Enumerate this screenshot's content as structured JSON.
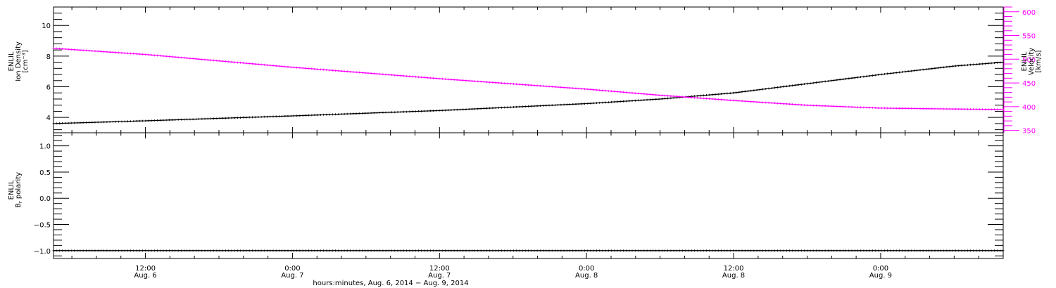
{
  "chart_data": [
    {
      "type": "line",
      "panel": "top",
      "ylabel_left": [
        "ENLIL",
        "Ion Density",
        "[cm⁻³]"
      ],
      "ylabel_right": [
        "ENLIL",
        "Velocity",
        "[km/s]"
      ],
      "ylim_left": [
        3.0,
        11.2
      ],
      "ylim_right": [
        345,
        610
      ],
      "yticks_left": [
        4,
        6,
        8,
        10
      ],
      "yticks_right": [
        350,
        400,
        450,
        500,
        550,
        600
      ],
      "series": [
        {
          "axis": "left",
          "color": "#000000",
          "x": [
            "2014-08-06T04:30",
            "2014-08-06T12:00",
            "2014-08-07T00:00",
            "2014-08-07T12:00",
            "2014-08-08T00:00",
            "2014-08-08T06:00",
            "2014-08-08T12:00",
            "2014-08-08T18:00",
            "2014-08-09T00:00",
            "2014-08-09T06:00",
            "2014-08-09T10:00"
          ],
          "y": [
            3.6,
            3.78,
            4.1,
            4.45,
            4.9,
            5.2,
            5.6,
            6.2,
            6.8,
            7.35,
            7.6
          ]
        },
        {
          "axis": "right",
          "color": "#ff00ff",
          "x": [
            "2014-08-06T04:30",
            "2014-08-06T12:00",
            "2014-08-07T00:00",
            "2014-08-07T12:00",
            "2014-08-08T00:00",
            "2014-08-08T06:00",
            "2014-08-08T12:00",
            "2014-08-08T18:00",
            "2014-08-09T00:00",
            "2014-08-09T06:00",
            "2014-08-09T10:00"
          ],
          "y": [
            523,
            510,
            483,
            459,
            437,
            424,
            413,
            403,
            397,
            395,
            394
          ]
        }
      ]
    },
    {
      "type": "line",
      "panel": "bottom",
      "ylabel_left": [
        "ENLIL",
        "B",
        "r",
        " polarity"
      ],
      "ylim_left": [
        -1.15,
        1.25
      ],
      "yticks_left": [
        -1.0,
        -0.5,
        0.0,
        0.5,
        1.0
      ],
      "ytick_labels_left": [
        "−1.0",
        "−0.5",
        "0.0",
        "0.5",
        "1.0"
      ],
      "series": [
        {
          "axis": "left",
          "color": "#000000",
          "x": [
            "2014-08-06T04:30",
            "2014-08-09T10:00"
          ],
          "y": [
            -1.0,
            -1.0
          ]
        }
      ]
    }
  ],
  "x_axis": {
    "xlim": [
      "2014-08-06T04:30",
      "2014-08-09T10:00"
    ],
    "ticks": [
      {
        "at": "2014-08-06T12:00",
        "time": "12:00",
        "date": "Aug. 6"
      },
      {
        "at": "2014-08-07T00:00",
        "time": "0:00",
        "date": "Aug. 7"
      },
      {
        "at": "2014-08-07T12:00",
        "time": "12:00",
        "date": "Aug. 7"
      },
      {
        "at": "2014-08-08T00:00",
        "time": "0:00",
        "date": "Aug. 8"
      },
      {
        "at": "2014-08-08T12:00",
        "time": "12:00",
        "date": "Aug. 8"
      },
      {
        "at": "2014-08-09T00:00",
        "time": "0:00",
        "date": "Aug. 9"
      }
    ],
    "xlabel": "hours:minutes, Aug.  6, 2014 − Aug.  9, 2014"
  },
  "colors": {
    "axis": "#000000",
    "velocity_axis": "#ff00ff"
  }
}
